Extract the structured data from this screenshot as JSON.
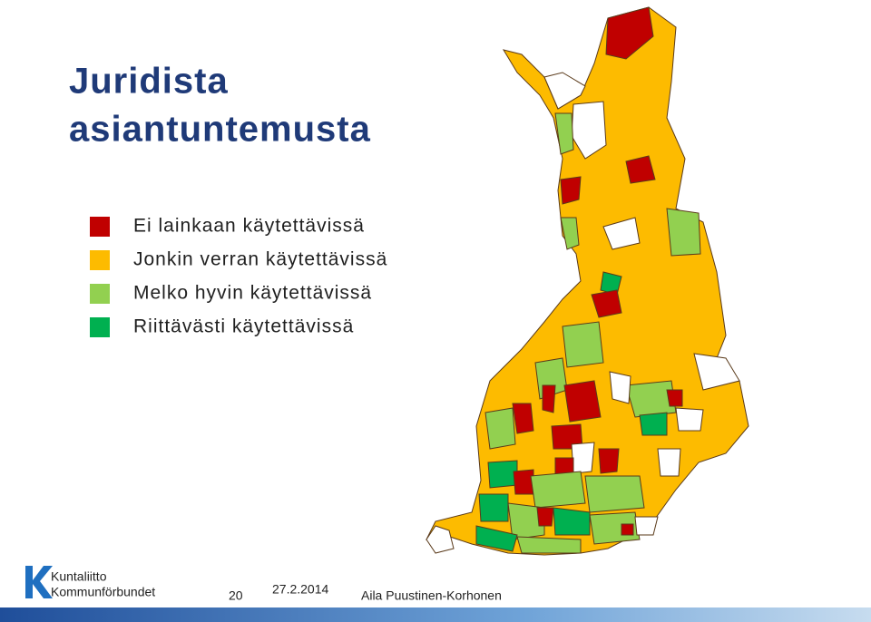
{
  "title": [
    "Juridista",
    "asiantuntemusta"
  ],
  "legend": [
    {
      "label": "Ei lainkaan käytettävissä",
      "color": "#c00000"
    },
    {
      "label": "Jonkin verran käytettävissä",
      "color": "#fdbb00"
    },
    {
      "label": "Melko hyvin käytettävissä",
      "color": "#92d050"
    },
    {
      "label": "Riittävästi käytettävissä",
      "color": "#00b050"
    }
  ],
  "footer": {
    "logo": [
      "Kuntaliitto",
      "Kommunförbundet"
    ],
    "page": "20",
    "date": "27.2.2014",
    "author": "Aila Puustinen-Korhonen"
  }
}
